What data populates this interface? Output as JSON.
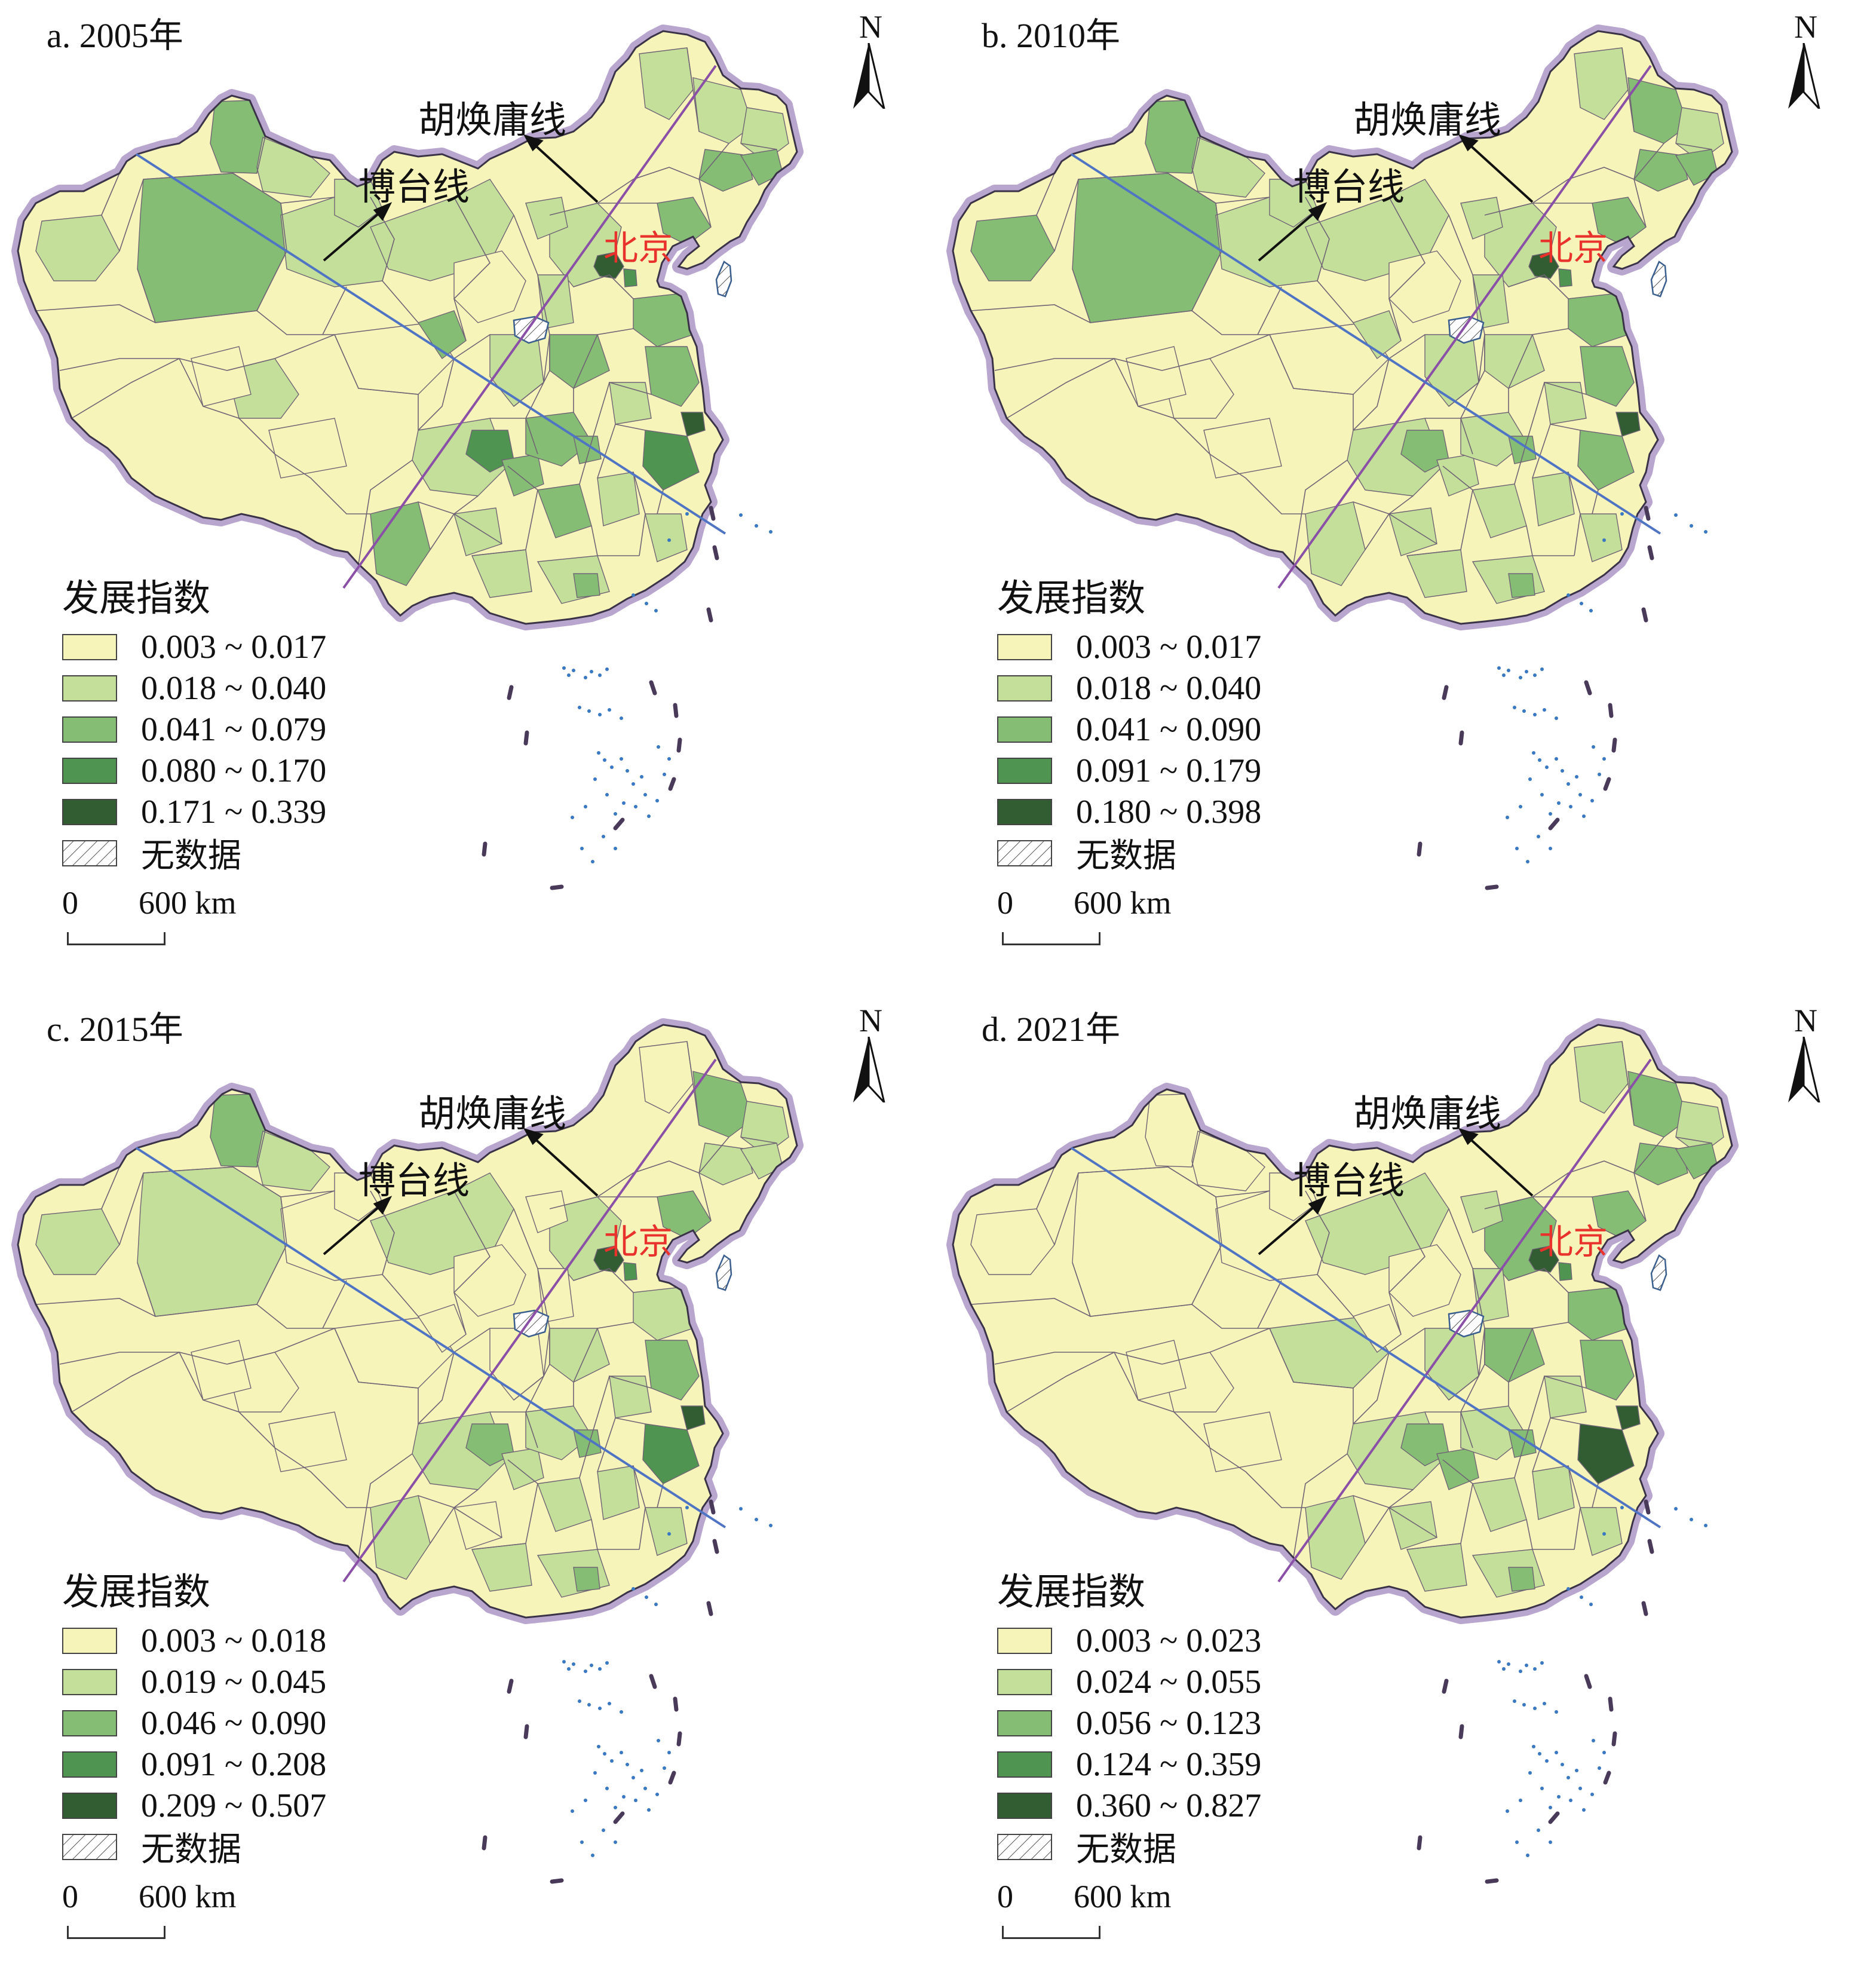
{
  "common": {
    "north": "N",
    "hu_line_label": "胡焕庸线",
    "botai_line_label": "博台线",
    "beijing_label": "北京",
    "legend_title": "发展指数",
    "no_data_label": "无数据",
    "scale_zero": "0",
    "scale_distance": "600 km",
    "colors": {
      "class1": "#f7f4b9",
      "class2": "#c4df9a",
      "class3": "#86bd74",
      "class4": "#4f9450",
      "class5": "#325c31",
      "border": "#6f6475",
      "halo": "#b9a6cf",
      "hu_line": "#8a4fa6",
      "botai_line": "#4f74c4",
      "beijing_text": "#e8322b"
    },
    "icons": [
      "north-arrow-icon",
      "arrow-icon",
      "hatch-pattern-icon"
    ]
  },
  "panels": [
    {
      "title": "a. 2005年",
      "legend": [
        {
          "range": "0.003 ~ 0.017"
        },
        {
          "range": "0.018 ~ 0.040"
        },
        {
          "range": "0.041 ~ 0.079"
        },
        {
          "range": "0.080 ~ 0.170"
        },
        {
          "range": "0.171 ~ 0.339"
        }
      ]
    },
    {
      "title": "b. 2010年",
      "legend": [
        {
          "range": "0.003 ~ 0.017"
        },
        {
          "range": "0.018 ~ 0.040"
        },
        {
          "range": "0.041 ~ 0.090"
        },
        {
          "range": "0.091 ~ 0.179"
        },
        {
          "range": "0.180 ~ 0.398"
        }
      ]
    },
    {
      "title": "c. 2015年",
      "legend": [
        {
          "range": "0.003 ~ 0.018"
        },
        {
          "range": "0.019 ~ 0.045"
        },
        {
          "range": "0.046 ~ 0.090"
        },
        {
          "range": "0.091 ~ 0.208"
        },
        {
          "range": "0.209 ~ 0.507"
        }
      ]
    },
    {
      "title": "d. 2021年",
      "legend": [
        {
          "range": "0.003 ~ 0.023"
        },
        {
          "range": "0.024 ~ 0.055"
        },
        {
          "range": "0.056 ~ 0.123"
        },
        {
          "range": "0.124 ~ 0.359"
        },
        {
          "range": "0.360 ~ 0.827"
        }
      ]
    }
  ]
}
